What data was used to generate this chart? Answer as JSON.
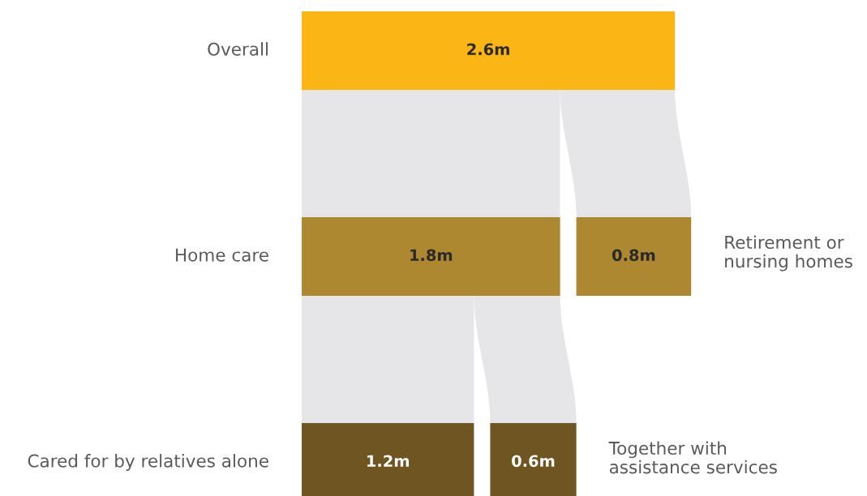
{
  "chart_data": {
    "type": "other",
    "categories": [
      "Overall",
      "Home care",
      "Retirement or nursing homes",
      "Cared for by relatives alone",
      "Together with assistance services"
    ],
    "values": [
      2.6,
      1.8,
      0.8,
      1.2,
      0.6
    ],
    "value_labels": [
      "2.6m",
      "1.8m",
      "0.8m",
      "1.2m",
      "0.6m"
    ],
    "colors": [
      "#fbb615",
      "#ad8830",
      "#ad8830",
      "#6f5522",
      "#6f5522"
    ]
  }
}
